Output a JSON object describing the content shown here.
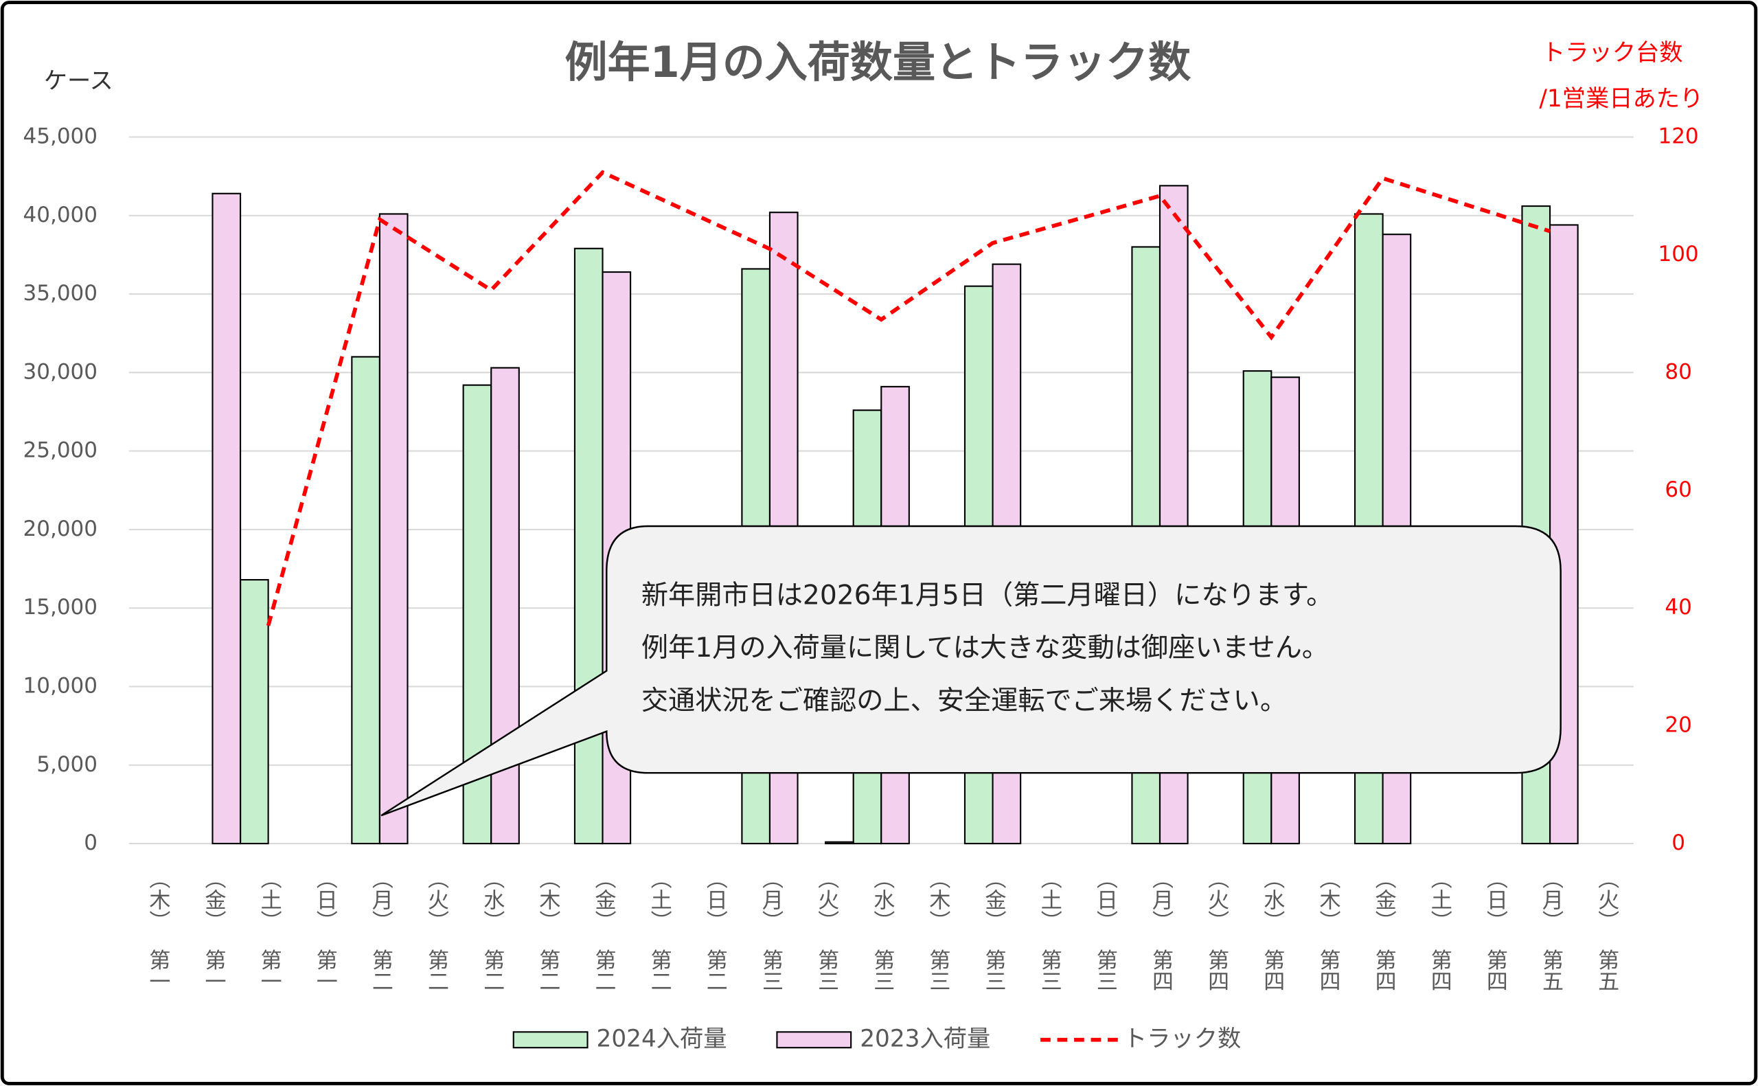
{
  "chart_data": {
    "type": "bar_line",
    "title": "例年1月の入荷数量とトラック数",
    "y_label": "ケース",
    "y2_label": [
      "トラック台数",
      "/1営業日あたり"
    ],
    "categories": [
      "（木）",
      "（金）",
      "（土）",
      "（日）",
      "（月）",
      "（火）",
      "（水）",
      "（木）",
      "（金）",
      "（土）",
      "（日）",
      "（月）",
      "（火）",
      "（水）",
      "（木）",
      "（金）",
      "（土）",
      "（日）",
      "（月）",
      "（火）",
      "（水）",
      "（木）",
      "（金）",
      "（土）",
      "（日）",
      "（月）",
      "（火）"
    ],
    "weeks": [
      "第一",
      "第一",
      "第一",
      "第一",
      "第二",
      "第二",
      "第二",
      "第二",
      "第二",
      "第二",
      "第二",
      "第三",
      "第三",
      "第三",
      "第三",
      "第三",
      "第三",
      "第三",
      "第四",
      "第四",
      "第四",
      "第四",
      "第四",
      "第四",
      "第四",
      "第五",
      "第五"
    ],
    "series": [
      {
        "name": "2024入荷量",
        "type": "bar",
        "color": "#c6efce",
        "values": [
          null,
          0,
          16800,
          null,
          31000,
          0,
          29200,
          0,
          37900,
          0,
          null,
          36600,
          0,
          27600,
          0,
          35500,
          0,
          null,
          38000,
          0,
          30100,
          0,
          40100,
          0,
          null,
          40600,
          0
        ]
      },
      {
        "name": "2023入荷量",
        "type": "bar",
        "color": "#f2d0ee",
        "values": [
          null,
          41400,
          0,
          null,
          40100,
          0,
          30300,
          0,
          36400,
          0,
          null,
          40200,
          100,
          29100,
          0,
          36900,
          0,
          null,
          41900,
          0,
          29700,
          0,
          38800,
          0,
          null,
          39400,
          0
        ]
      },
      {
        "name": "トラック数",
        "type": "line",
        "axis": "y2",
        "color": "#ff0000",
        "dashed": true,
        "values": [
          null,
          null,
          37,
          null,
          106,
          null,
          94,
          null,
          114,
          null,
          null,
          101,
          null,
          89,
          null,
          102,
          null,
          null,
          110,
          null,
          86,
          null,
          113,
          null,
          null,
          104,
          null
        ]
      }
    ],
    "connect_gaps": true,
    "ylim": [
      0,
      45000
    ],
    "yticks": [
      0,
      {
        "value": 5000,
        "label": "5,000"
      },
      {
        "value": 10000,
        "label": "10,000"
      },
      {
        "value": 15000,
        "label": "15,000"
      },
      {
        "value": 20000,
        "label": "20,000"
      },
      {
        "value": 25000,
        "label": "25,000"
      },
      {
        "value": 30000,
        "label": "30,000"
      },
      {
        "value": 35000,
        "label": "35,000"
      },
      {
        "value": 40000,
        "label": "40,000"
      },
      {
        "value": 45000,
        "label": "45,000"
      }
    ],
    "y2lim": [
      0,
      120
    ],
    "y2ticks": [
      0,
      20,
      40,
      60,
      80,
      100,
      120
    ],
    "grid": true,
    "legend": "bottom",
    "annotation": [
      "新年開市日は2026年1月5日（第二月曜日）になります。",
      "例年1月の入荷量に関しては大きな変動は御座いません。",
      "交通状況をご確認の上、安全運転でご来場ください。"
    ]
  }
}
